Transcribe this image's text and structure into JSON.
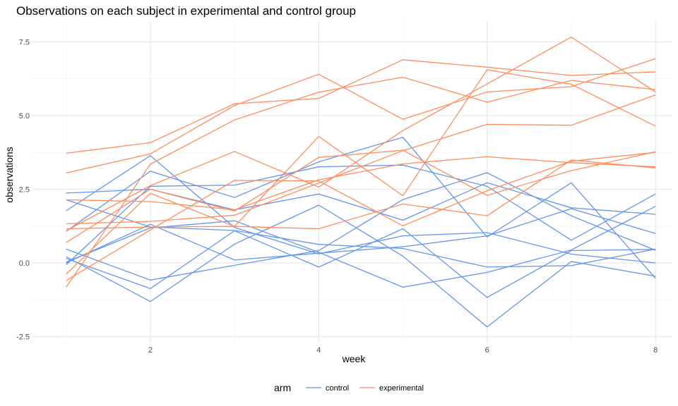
{
  "chart_data": {
    "type": "line",
    "title": "Observations on each subject in experimental and control group",
    "xlabel": "week",
    "ylabel": "observations",
    "xlim": [
      0.6,
      8.2
    ],
    "ylim": [
      -2.7,
      8.2
    ],
    "x_ticks": [
      2,
      4,
      6,
      8
    ],
    "y_ticks": [
      -2.5,
      0.0,
      2.5,
      5.0,
      7.5
    ],
    "y_tick_labels": [
      "-2.5",
      "0.0",
      "2.5",
      "5.0",
      "7.5"
    ],
    "grid": true,
    "legend": {
      "title": "arm",
      "position": "bottom",
      "entries": [
        {
          "label": "control",
          "color": "#6495ed"
        },
        {
          "label": "experimental",
          "color": "#ff8c5a"
        }
      ]
    },
    "x": [
      1,
      2,
      3,
      4,
      5,
      6,
      7,
      8
    ],
    "series": [
      {
        "group": "control",
        "values": [
          2.37,
          2.5,
          1.8,
          2.34,
          1.45,
          2.72,
          1.87,
          1.65
        ]
      },
      {
        "group": "control",
        "values": [
          1.77,
          3.64,
          1.2,
          0.31,
          0.92,
          1.03,
          0.3,
          0.0
        ]
      },
      {
        "group": "control",
        "values": [
          2.14,
          1.22,
          1.1,
          0.63,
          0.49,
          -0.14,
          -0.09,
          0.47
        ]
      },
      {
        "group": "control",
        "values": [
          1.07,
          3.11,
          2.22,
          3.43,
          4.26,
          0.88,
          2.72,
          -0.52
        ]
      },
      {
        "group": "control",
        "values": [
          0.47,
          -0.58,
          -0.08,
          0.42,
          2.15,
          3.06,
          1.6,
          0.43
        ]
      },
      {
        "group": "control",
        "values": [
          0.15,
          -0.87,
          1.09,
          -0.14,
          1.16,
          -1.17,
          0.42,
          0.46
        ]
      },
      {
        "group": "control",
        "values": [
          0.03,
          1.19,
          1.43,
          0.36,
          -0.82,
          -0.32,
          0.44,
          1.92
        ]
      },
      {
        "group": "control",
        "values": [
          0.0,
          1.31,
          0.1,
          0.33,
          0.55,
          0.92,
          1.84,
          1.0
        ]
      },
      {
        "group": "control",
        "values": [
          -0.06,
          2.6,
          2.64,
          3.26,
          3.32,
          2.6,
          0.77,
          2.34
        ]
      },
      {
        "group": "control",
        "values": [
          0.21,
          -1.31,
          0.64,
          1.96,
          0.23,
          -2.17,
          0.05,
          -0.45
        ]
      },
      {
        "group": "experimental",
        "values": [
          3.72,
          4.08,
          5.4,
          5.58,
          6.89,
          6.64,
          6.36,
          6.48
        ]
      },
      {
        "group": "experimental",
        "values": [
          3.05,
          3.7,
          5.34,
          6.4,
          4.87,
          5.8,
          5.98,
          6.93
        ]
      },
      {
        "group": "experimental",
        "values": [
          2.14,
          2.08,
          1.8,
          2.82,
          3.36,
          3.6,
          3.4,
          3.26
        ]
      },
      {
        "group": "experimental",
        "values": [
          1.33,
          1.41,
          1.62,
          2.71,
          3.81,
          4.7,
          4.67,
          5.7
        ]
      },
      {
        "group": "experimental",
        "values": [
          1.16,
          1.22,
          1.24,
          1.16,
          2.0,
          1.6,
          3.49,
          3.22
        ]
      },
      {
        "group": "experimental",
        "values": [
          1.09,
          2.62,
          3.78,
          2.57,
          4.49,
          6.07,
          7.66,
          5.8
        ]
      },
      {
        "group": "experimental",
        "values": [
          0.69,
          2.5,
          1.76,
          3.58,
          3.82,
          2.29,
          3.13,
          3.77
        ]
      },
      {
        "group": "experimental",
        "values": [
          -0.38,
          2.36,
          1.24,
          4.29,
          2.28,
          6.55,
          6.06,
          4.64
        ]
      },
      {
        "group": "experimental",
        "values": [
          -0.6,
          1.12,
          2.8,
          2.78,
          1.26,
          2.45,
          3.45,
          3.75
        ]
      },
      {
        "group": "experimental",
        "values": [
          -0.82,
          3.35,
          4.85,
          5.79,
          6.3,
          5.45,
          6.19,
          5.88
        ]
      }
    ]
  }
}
